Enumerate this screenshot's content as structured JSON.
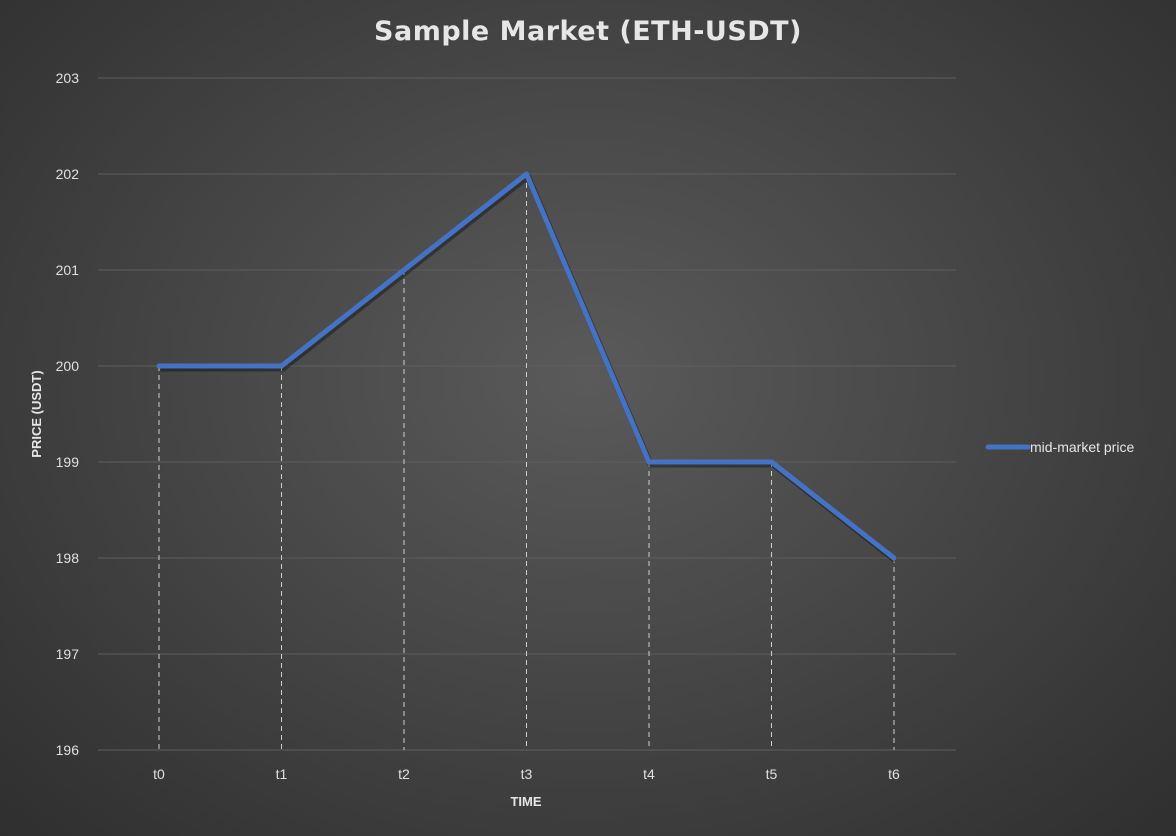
{
  "chart_data": {
    "type": "line",
    "title": "Sample Market (ETH-USDT)",
    "xlabel": "TIME",
    "ylabel": "PRICE (USDT)",
    "categories": [
      "t0",
      "t1",
      "t2",
      "t3",
      "t4",
      "t5",
      "t6"
    ],
    "series": [
      {
        "name": "mid-market price",
        "values": [
          200,
          200,
          201,
          202,
          199,
          199,
          198
        ],
        "color": "#4472c4"
      }
    ],
    "ylim": [
      196,
      203
    ],
    "yticks": [
      196,
      197,
      198,
      199,
      200,
      201,
      202,
      203
    ],
    "grid": true,
    "drop_lines": true,
    "legend": "right",
    "colors": {
      "background": "#404040",
      "gridline": "#5e5e5e",
      "text": "#e0e0e0"
    }
  }
}
